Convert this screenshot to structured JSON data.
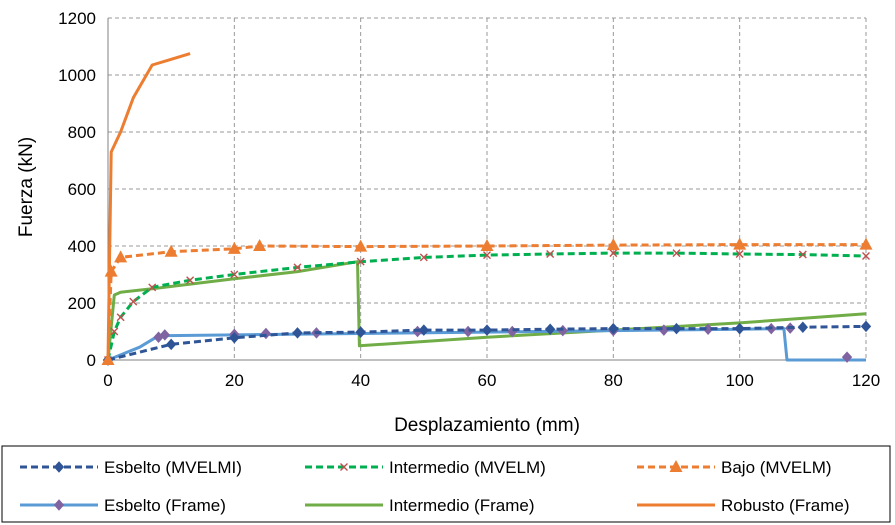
{
  "chart_data": {
    "type": "line",
    "xlabel": "Desplazamiento (mm)",
    "ylabel": "Fuerza (kN)",
    "xlim": [
      0,
      120
    ],
    "ylim": [
      0,
      1200
    ],
    "xticks": [
      "0",
      "20",
      "40",
      "60",
      "80",
      "100",
      "120"
    ],
    "yticks": [
      "0",
      "200",
      "400",
      "600",
      "800",
      "1000",
      "1200"
    ],
    "grid": true,
    "legend_position": "bottom",
    "series": [
      {
        "name": "Esbelto (MVELMI)",
        "color": "#2F5597",
        "style": "dashed",
        "marker": "diamond",
        "points": [
          [
            0,
            0
          ],
          [
            10,
            55
          ],
          [
            20,
            78
          ],
          [
            30,
            95
          ],
          [
            40,
            98
          ],
          [
            50,
            105
          ],
          [
            60,
            105
          ],
          [
            70,
            108
          ],
          [
            80,
            110
          ],
          [
            90,
            110
          ],
          [
            100,
            110
          ],
          [
            110,
            115
          ],
          [
            120,
            118
          ]
        ]
      },
      {
        "name": "Intermedio (MVELM)",
        "color": "#00B050",
        "style": "dashed",
        "marker": "x",
        "points": [
          [
            0,
            0
          ],
          [
            1,
            100
          ],
          [
            2,
            150
          ],
          [
            4,
            205
          ],
          [
            7,
            255
          ],
          [
            13,
            280
          ],
          [
            20,
            300
          ],
          [
            30,
            325
          ],
          [
            40,
            345
          ],
          [
            50,
            360
          ],
          [
            60,
            368
          ],
          [
            70,
            372
          ],
          [
            80,
            375
          ],
          [
            90,
            375
          ],
          [
            100,
            372
          ],
          [
            110,
            370
          ],
          [
            120,
            365
          ]
        ]
      },
      {
        "name": "Bajo (MVELM)",
        "color": "#ED7D31",
        "style": "dashed",
        "marker": "triangle",
        "points": [
          [
            0,
            0
          ],
          [
            0.5,
            310
          ],
          [
            2,
            360
          ],
          [
            10,
            380
          ],
          [
            20,
            390
          ],
          [
            24,
            400
          ],
          [
            40,
            398
          ],
          [
            60,
            400
          ],
          [
            80,
            403
          ],
          [
            100,
            405
          ],
          [
            120,
            405
          ]
        ]
      },
      {
        "name": "Esbelto (Frame)",
        "color": "#5B9BD5",
        "style": "solid",
        "marker": "diamond",
        "marker_color": "#8064A2",
        "line_points": [
          [
            0,
            0
          ],
          [
            5,
            45
          ],
          [
            8,
            85
          ],
          [
            20,
            88
          ],
          [
            40,
            93
          ],
          [
            60,
            98
          ],
          [
            80,
            103
          ],
          [
            100,
            108
          ],
          [
            107,
            110
          ],
          [
            107.5,
            0
          ],
          [
            120,
            0
          ]
        ],
        "marker_points": [
          [
            0,
            0
          ],
          [
            8,
            80
          ],
          [
            9,
            88
          ],
          [
            20,
            90
          ],
          [
            25,
            93
          ],
          [
            33,
            95
          ],
          [
            40,
            98
          ],
          [
            49,
            100
          ],
          [
            57,
            100
          ],
          [
            64,
            100
          ],
          [
            72,
            103
          ],
          [
            80,
            103
          ],
          [
            88,
            105
          ],
          [
            95,
            108
          ],
          [
            100,
            110
          ],
          [
            105,
            110
          ],
          [
            108,
            112
          ],
          [
            117,
            10
          ]
        ]
      },
      {
        "name": "Intermedio (Frame)",
        "color": "#70AD47",
        "style": "solid",
        "marker": "none",
        "points": [
          [
            0,
            0
          ],
          [
            1,
            228
          ],
          [
            2,
            238
          ],
          [
            7,
            250
          ],
          [
            20,
            285
          ],
          [
            30,
            310
          ],
          [
            39.5,
            345
          ],
          [
            39.8,
            50
          ],
          [
            60,
            80
          ],
          [
            80,
            105
          ],
          [
            100,
            130
          ],
          [
            120,
            162
          ]
        ]
      },
      {
        "name": "Robusto (Frame)",
        "color": "#ED7D31",
        "style": "solid",
        "marker": "none",
        "points": [
          [
            0,
            0
          ],
          [
            0.5,
            730
          ],
          [
            2,
            800
          ],
          [
            4,
            920
          ],
          [
            7,
            1035
          ],
          [
            10,
            1055
          ],
          [
            13,
            1075
          ]
        ]
      }
    ]
  }
}
